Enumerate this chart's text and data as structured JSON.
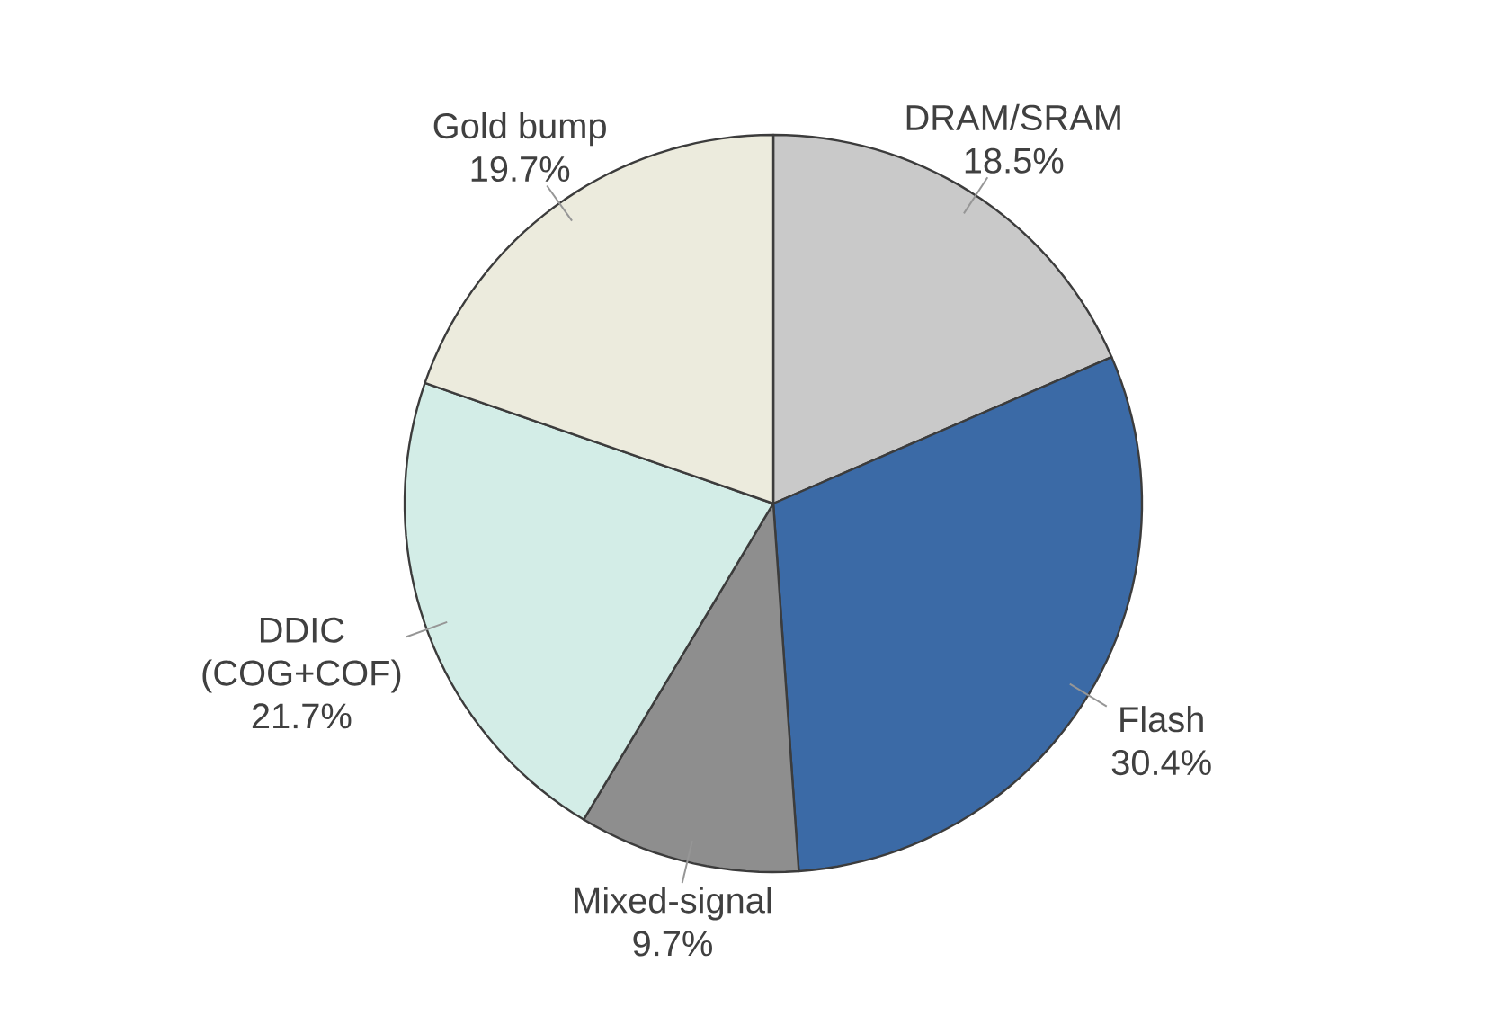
{
  "chart_data": {
    "type": "pie",
    "categories": [
      "DRAM/SRAM",
      "Flash",
      "Mixed-signal",
      "DDIC (COG+COF)",
      "Gold bump"
    ],
    "values": [
      18.5,
      30.4,
      9.7,
      21.7,
      19.7
    ],
    "value_labels": [
      "18.5%",
      "30.4%",
      "9.7%",
      "21.7%",
      "19.7%"
    ],
    "colors": [
      "#c9c9c9",
      "#3b6aa6",
      "#8e8e8e",
      "#d3ede7",
      "#ecebdd"
    ]
  }
}
